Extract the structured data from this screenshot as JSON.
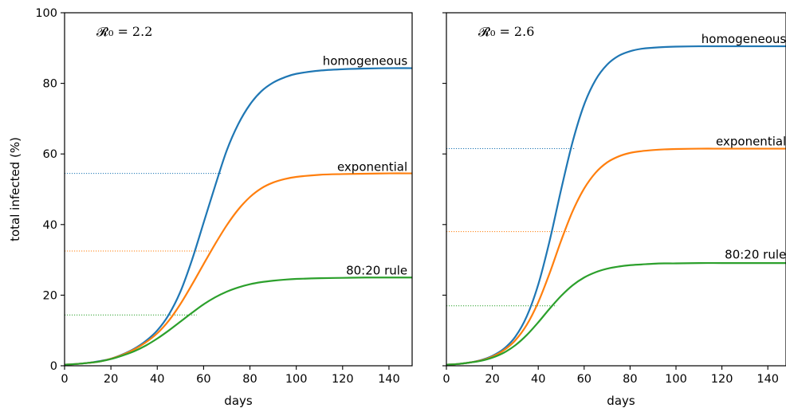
{
  "chart_data": [
    {
      "type": "line",
      "annotation": "𝓡₀ = 2.2",
      "xlabel": "days",
      "ylabel": "total infected (%)",
      "xlim": [
        0,
        150
      ],
      "ylim": [
        0,
        100
      ],
      "xticks": [
        0,
        20,
        40,
        60,
        80,
        100,
        120,
        140
      ],
      "yticks": [
        0,
        20,
        40,
        60,
        80,
        100
      ],
      "show_yticklabels": true,
      "series": [
        {
          "name": "homogeneous",
          "color": "#1f77b4",
          "x": [
            0,
            5,
            10,
            15,
            20,
            25,
            30,
            35,
            40,
            45,
            50,
            55,
            60,
            65,
            70,
            75,
            80,
            85,
            90,
            95,
            100,
            110,
            120,
            130,
            140,
            150
          ],
          "y": [
            0.3,
            0.5,
            0.8,
            1.3,
            2.0,
            3.2,
            4.8,
            7.0,
            10.0,
            14.5,
            21.0,
            30.0,
            40.5,
            51.0,
            61.0,
            68.5,
            74.0,
            77.8,
            80.2,
            81.7,
            82.7,
            83.6,
            84.0,
            84.2,
            84.3,
            84.3
          ]
        },
        {
          "name": "exponential",
          "color": "#ff7f0e",
          "x": [
            0,
            5,
            10,
            15,
            20,
            25,
            30,
            35,
            40,
            45,
            50,
            55,
            60,
            65,
            70,
            75,
            80,
            85,
            90,
            95,
            100,
            110,
            120,
            130,
            140,
            150
          ],
          "y": [
            0.3,
            0.5,
            0.8,
            1.2,
            2.0,
            3.1,
            4.6,
            6.6,
            9.2,
            12.8,
            17.5,
            23.0,
            28.8,
            34.5,
            39.8,
            44.3,
            47.8,
            50.3,
            51.9,
            52.9,
            53.5,
            54.1,
            54.3,
            54.4,
            54.5,
            54.5
          ]
        },
        {
          "name": "80:20 rule",
          "color": "#2ca02c",
          "x": [
            0,
            5,
            10,
            15,
            20,
            25,
            30,
            35,
            40,
            45,
            50,
            55,
            60,
            65,
            70,
            75,
            80,
            85,
            90,
            95,
            100,
            110,
            120,
            130,
            140,
            150
          ],
          "y": [
            0.3,
            0.5,
            0.8,
            1.2,
            1.9,
            2.9,
            4.1,
            5.7,
            7.7,
            10.0,
            12.5,
            15.0,
            17.4,
            19.4,
            21.0,
            22.2,
            23.1,
            23.7,
            24.1,
            24.4,
            24.6,
            24.8,
            24.9,
            25.0,
            25.0,
            25.0
          ]
        }
      ],
      "reference_lines": [
        {
          "color": "#1f77b4",
          "y": 54.5,
          "x_end": 68
        },
        {
          "color": "#ff7f0e",
          "y": 32.5,
          "x_end": 64
        },
        {
          "color": "#2ca02c",
          "y": 14.4,
          "x_end": 57
        }
      ],
      "labels": [
        {
          "text": "homogeneous",
          "x": 148,
          "y": 86.3
        },
        {
          "text": "exponential",
          "x": 148,
          "y": 56.3
        },
        {
          "text": "80:20 rule",
          "x": 148,
          "y": 27.0
        }
      ]
    },
    {
      "type": "line",
      "annotation": "𝓡₀ = 2.6",
      "xlabel": "days",
      "ylabel": "",
      "xlim": [
        0,
        150
      ],
      "ylim": [
        0,
        100
      ],
      "xticks": [
        0,
        20,
        40,
        60,
        80,
        100,
        120,
        140
      ],
      "yticks": [
        0,
        20,
        40,
        60,
        80,
        100
      ],
      "show_yticklabels": false,
      "series": [
        {
          "name": "homogeneous",
          "color": "#1f77b4",
          "x": [
            0,
            5,
            10,
            15,
            20,
            25,
            30,
            35,
            40,
            45,
            50,
            55,
            60,
            65,
            70,
            75,
            80,
            85,
            90,
            95,
            100,
            110,
            120,
            130,
            140,
            150
          ],
          "y": [
            0.3,
            0.5,
            0.9,
            1.6,
            2.8,
            4.8,
            8.2,
            14.0,
            23.0,
            35.5,
            50.0,
            63.5,
            74.0,
            81.0,
            85.3,
            87.8,
            89.1,
            89.8,
            90.1,
            90.3,
            90.4,
            90.5,
            90.5,
            90.5,
            90.5,
            90.5
          ]
        },
        {
          "name": "exponential",
          "color": "#ff7f0e",
          "x": [
            0,
            5,
            10,
            15,
            20,
            25,
            30,
            35,
            40,
            45,
            50,
            55,
            60,
            65,
            70,
            75,
            80,
            85,
            90,
            95,
            100,
            110,
            120,
            130,
            140,
            150
          ],
          "y": [
            0.3,
            0.5,
            0.9,
            1.5,
            2.6,
            4.4,
            7.2,
            11.6,
            18.0,
            26.3,
            35.5,
            43.8,
            50.2,
            54.7,
            57.6,
            59.3,
            60.3,
            60.8,
            61.1,
            61.3,
            61.4,
            61.5,
            61.5,
            61.5,
            61.5,
            61.5
          ]
        },
        {
          "name": "80:20 rule",
          "color": "#2ca02c",
          "x": [
            0,
            5,
            10,
            15,
            20,
            25,
            30,
            35,
            40,
            45,
            50,
            55,
            60,
            65,
            70,
            75,
            80,
            85,
            90,
            95,
            100,
            110,
            120,
            130,
            140,
            150
          ],
          "y": [
            0.3,
            0.5,
            0.9,
            1.4,
            2.3,
            3.7,
            5.8,
            8.7,
            12.3,
            16.2,
            19.8,
            22.8,
            25.0,
            26.5,
            27.5,
            28.1,
            28.5,
            28.7,
            28.9,
            29.0,
            29.0,
            29.1,
            29.1,
            29.1,
            29.1,
            29.1
          ]
        }
      ],
      "reference_lines": [
        {
          "color": "#1f77b4",
          "y": 61.5,
          "x_end": 56
        },
        {
          "color": "#ff7f0e",
          "y": 38.0,
          "x_end": 54
        },
        {
          "color": "#2ca02c",
          "y": 17.0,
          "x_end": 48
        }
      ],
      "labels": [
        {
          "text": "homogeneous",
          "x": 148,
          "y": 92.5
        },
        {
          "text": "exponential",
          "x": 148,
          "y": 63.5
        },
        {
          "text": "80:20 rule",
          "x": 148,
          "y": 31.5
        }
      ]
    }
  ]
}
